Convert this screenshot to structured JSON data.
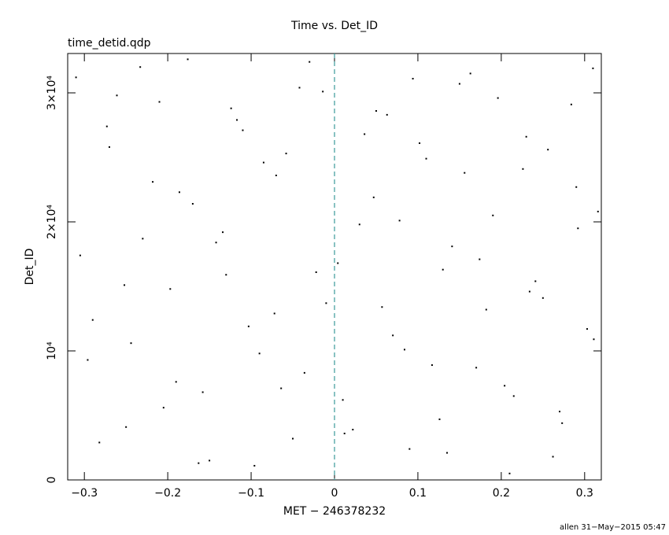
{
  "chart_data": {
    "type": "scatter",
    "title": "Time vs. Det_ID",
    "subtitle": "time_detid.qdp",
    "x_label": "MET − 246378232",
    "y_label": "Det_ID",
    "footer": "allen 31−May−2015 05:47",
    "color": "#000000",
    "reference_line": {
      "x": 0,
      "color": "#3a9a9a"
    },
    "xlim": [
      -0.32,
      0.32
    ],
    "ylim": [
      0,
      33050
    ],
    "xticks": [
      {
        "value": -0.3,
        "label": "−0.3"
      },
      {
        "value": -0.2,
        "label": "−0.2"
      },
      {
        "value": -0.1,
        "label": "−0.1"
      },
      0,
      0.1,
      0.2,
      0.3
    ],
    "yticks": [
      0,
      {
        "value": 10000,
        "label": "10⁴"
      },
      {
        "value": 20000,
        "label": "2×10⁴"
      },
      {
        "value": 30000,
        "label": "3×10⁴"
      }
    ],
    "x": [
      -0.31,
      -0.29,
      -0.27,
      -0.25,
      -0.23,
      -0.21,
      -0.19,
      -0.17,
      -0.15,
      -0.13,
      -0.11,
      -0.09,
      -0.07,
      -0.05,
      -0.03,
      -0.01,
      0.01,
      0.03,
      0.05,
      0.07,
      0.09,
      0.11,
      0.13,
      0.15,
      0.17,
      0.19,
      0.21,
      0.23,
      0.25,
      0.27,
      0.29,
      0.31,
      -0.305,
      -0.282,
      -0.261,
      -0.244,
      -0.218,
      -0.197,
      -0.176,
      -0.158,
      -0.134,
      -0.117,
      -0.096,
      -0.072,
      -0.058,
      -0.036,
      -0.014,
      0.004,
      0.022,
      0.047,
      0.063,
      0.084,
      0.102,
      0.126,
      0.141,
      0.163,
      0.182,
      0.204,
      0.226,
      0.241,
      0.262,
      0.284,
      0.303,
      0.316,
      -0.296,
      -0.273,
      -0.252,
      -0.233,
      -0.205,
      -0.186,
      -0.163,
      -0.142,
      -0.124,
      -0.103,
      -0.085,
      -0.064,
      -0.042,
      -0.022,
      0.012,
      0.036,
      0.057,
      0.078,
      0.094,
      0.117,
      0.135,
      0.156,
      0.174,
      0.196,
      0.215,
      0.234,
      0.256,
      0.273,
      0.292,
      0.311
    ],
    "y": [
      31200,
      12400,
      25800,
      4100,
      18700,
      29300,
      7600,
      21400,
      1500,
      15900,
      27100,
      9800,
      23600,
      3200,
      32400,
      13700,
      6200,
      19800,
      28600,
      11200,
      2400,
      24900,
      16300,
      30700,
      8700,
      20500,
      500,
      26600,
      14100,
      5300,
      22700,
      31900,
      17400,
      2900,
      29800,
      10600,
      23100,
      14800,
      32600,
      6800,
      19200,
      27900,
      1100,
      12900,
      25300,
      8300,
      30100,
      16800,
      3900,
      21900,
      28300,
      10100,
      26100,
      4700,
      18100,
      31500,
      13200,
      7300,
      24100,
      15400,
      1800,
      29100,
      11700,
      20800,
      9300,
      27400,
      15100,
      32000,
      5600,
      22300,
      1300,
      18400,
      28800,
      11900,
      24600,
      7100,
      30400,
      16100,
      3600,
      26800,
      13400,
      20100,
      31100,
      8900,
      2100,
      23800,
      17100,
      29600,
      6500,
      14600,
      25600,
      4400,
      19500,
      10900
    ]
  }
}
